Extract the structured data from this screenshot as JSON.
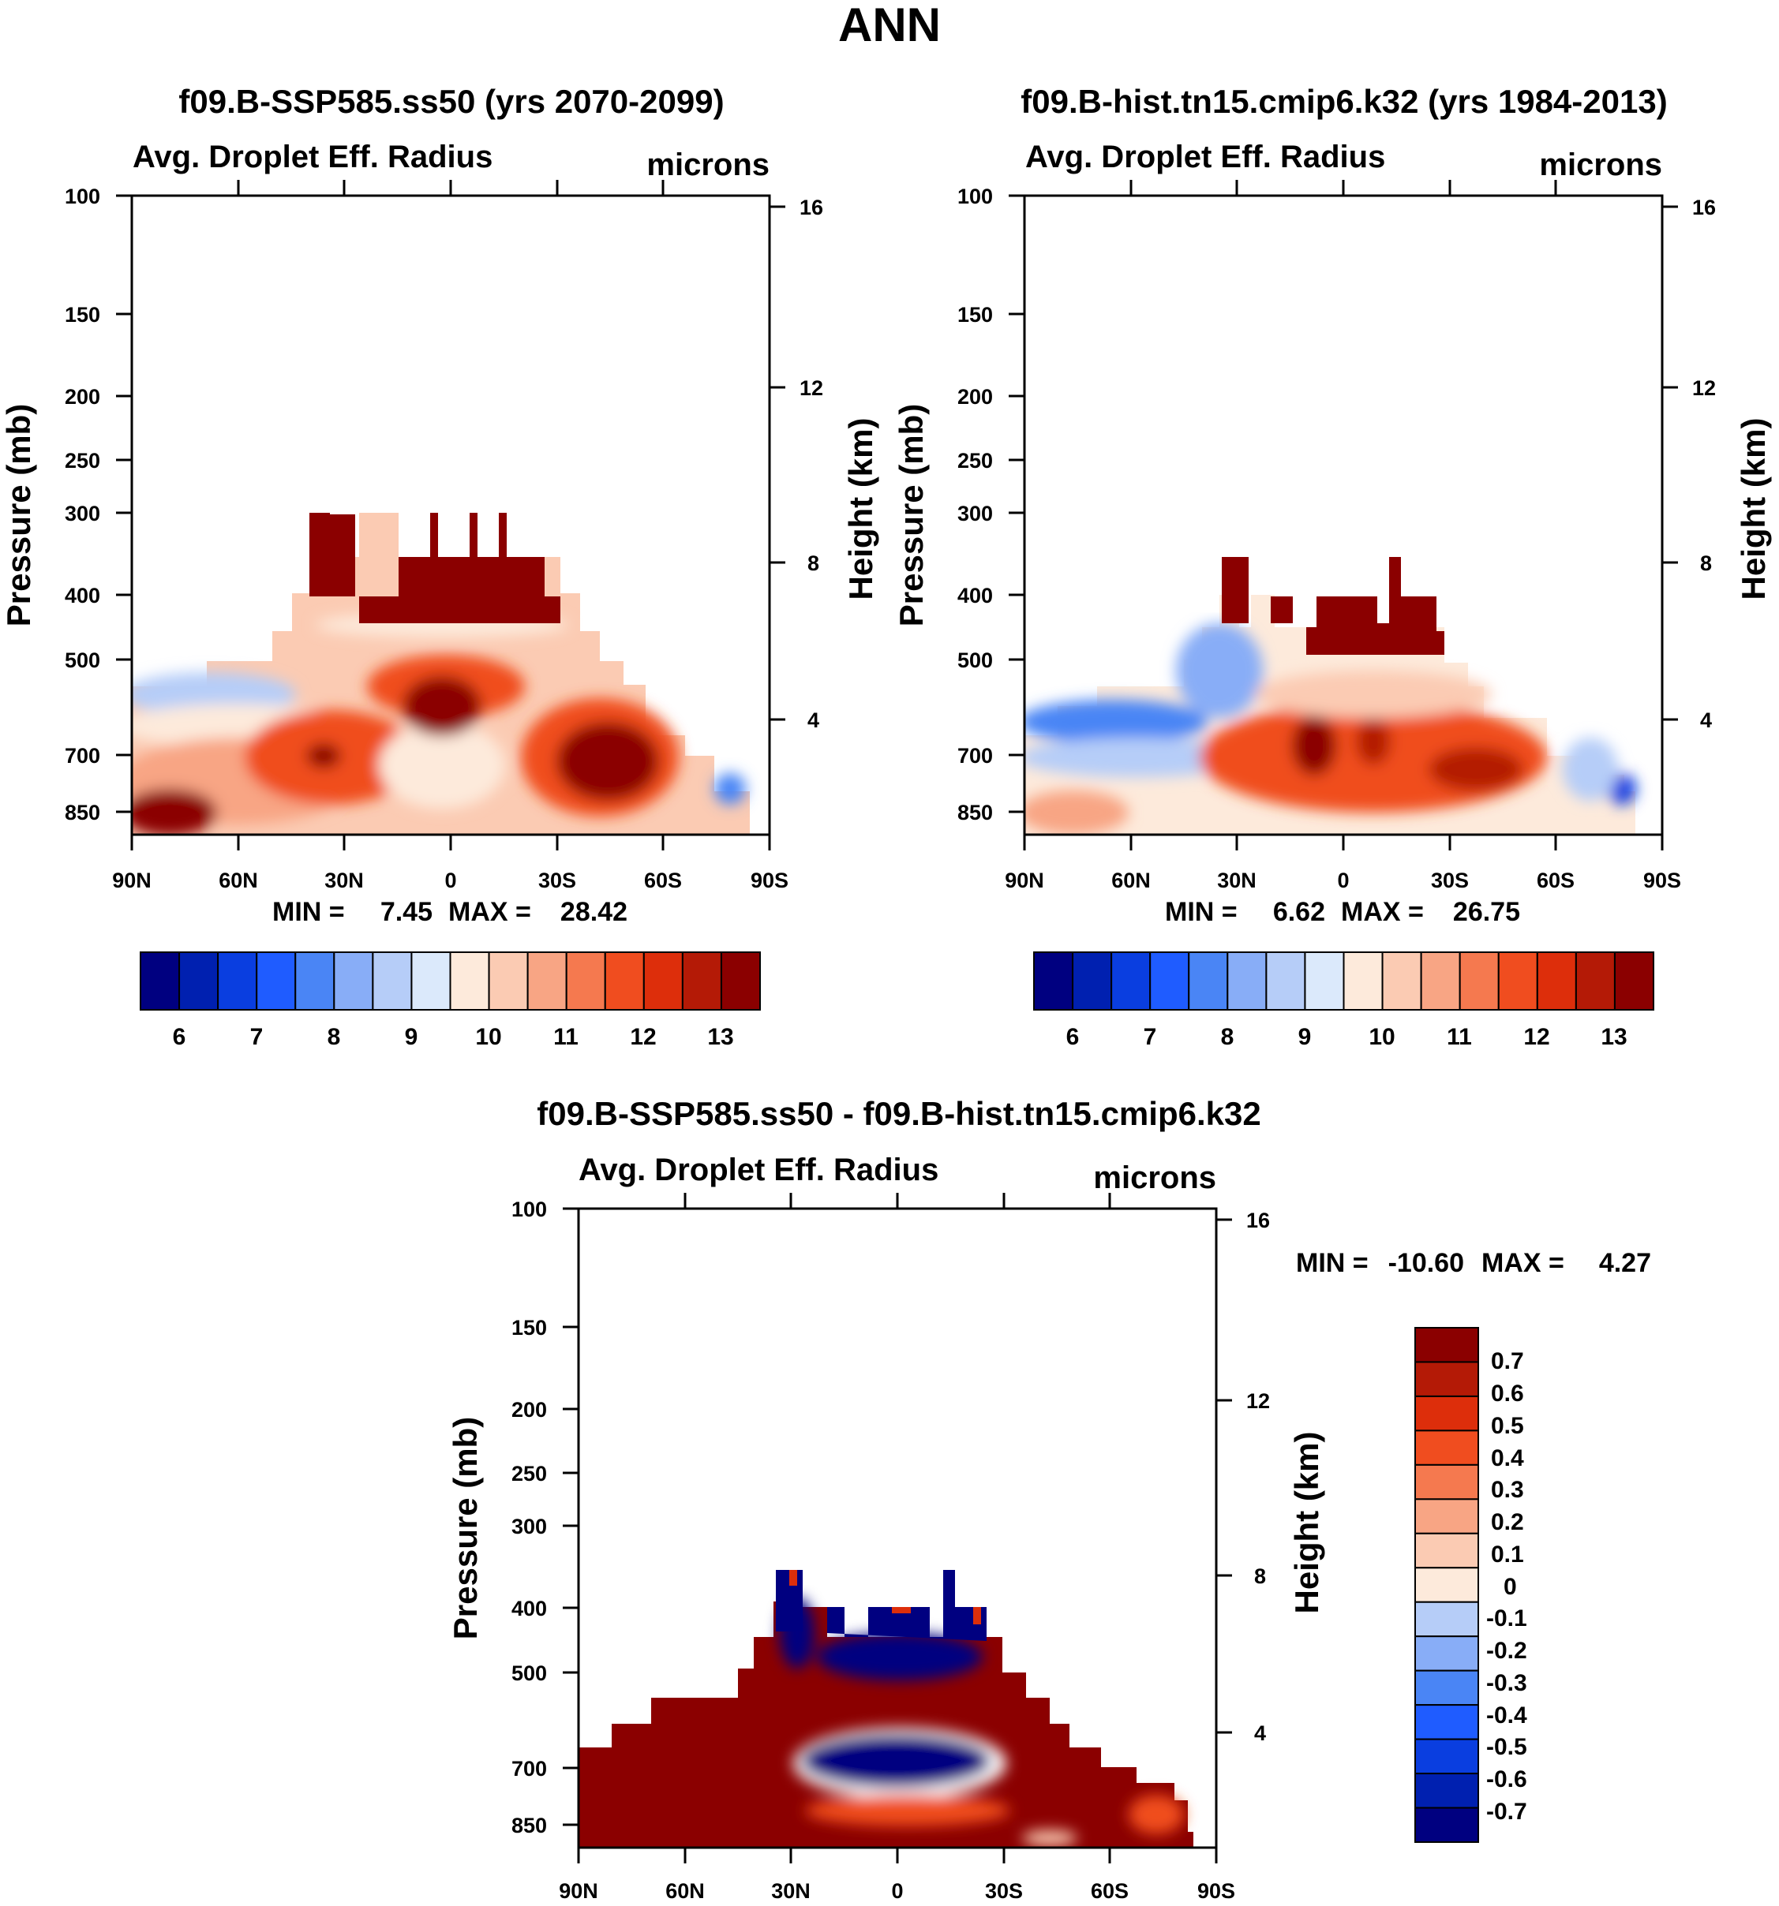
{
  "figure": {
    "title": "ANN",
    "colors": {
      "abs_scale": [
        "#000080",
        "#0020b0",
        "#0a3ee0",
        "#1f5cff",
        "#4a85f5",
        "#88adf7",
        "#b6cdf8",
        "#dbe9fb",
        "#fdeadb",
        "#fbcbb3",
        "#f8a584",
        "#f5794f",
        "#f04d1f",
        "#dd2e0b",
        "#b41a06",
        "#8b0000"
      ],
      "diff_scale": [
        "#000080",
        "#0020b0",
        "#0a3ee0",
        "#1f5cff",
        "#4a85f5",
        "#88adf7",
        "#b6cdf8",
        "#dbe9fb",
        "#fdeadb",
        "#fbcbb3",
        "#f8a584",
        "#f5794f",
        "#f04d1f",
        "#dd2e0b",
        "#b41a06",
        "#8b0000"
      ]
    }
  },
  "chart_data": [
    {
      "type": "heatmap",
      "id": "panel-ssp585",
      "title": "f09.B-SSP585.ss50 (yrs 2070-2099)",
      "variable": "Avg. Droplet Eff. Radius",
      "units": "microns",
      "ylabel_left": "Pressure (mb)",
      "ylabel_right": "Height (km)",
      "x_ticks": [
        "90N",
        "60N",
        "30N",
        "0",
        "30S",
        "60S",
        "90S"
      ],
      "x_tick_values": [
        90,
        60,
        30,
        0,
        -30,
        -60,
        -90
      ],
      "y_ticks": [
        100,
        150,
        200,
        250,
        300,
        400,
        500,
        700,
        850
      ],
      "y_range": [
        100,
        1000
      ],
      "height_ticks_km": [
        4,
        8,
        12,
        16
      ],
      "min_label": "MIN =",
      "min_value": "7.45",
      "max_label": "MAX =",
      "max_value": "28.42",
      "colorbar_labels": [
        "6",
        "7",
        "8",
        "9",
        "10",
        "11",
        "12",
        "13"
      ],
      "colorbar_levels": [
        5.5,
        6,
        6.5,
        7,
        7.5,
        8,
        8.5,
        9,
        9.5,
        10,
        10.5,
        11,
        11.5,
        12,
        12.5,
        13,
        13.5
      ]
    },
    {
      "type": "heatmap",
      "id": "panel-hist",
      "title": "f09.B-hist.tn15.cmip6.k32 (yrs 1984-2013)",
      "variable": "Avg. Droplet Eff. Radius",
      "units": "microns",
      "ylabel_left": "Pressure (mb)",
      "ylabel_right": "Height (km)",
      "x_ticks": [
        "90N",
        "60N",
        "30N",
        "0",
        "30S",
        "60S",
        "90S"
      ],
      "x_tick_values": [
        90,
        60,
        30,
        0,
        -30,
        -60,
        -90
      ],
      "y_ticks": [
        100,
        150,
        200,
        250,
        300,
        400,
        500,
        700,
        850
      ],
      "y_range": [
        100,
        1000
      ],
      "height_ticks_km": [
        4,
        8,
        12,
        16
      ],
      "min_label": "MIN =",
      "min_value": "6.62",
      "max_label": "MAX =",
      "max_value": "26.75",
      "colorbar_labels": [
        "6",
        "7",
        "8",
        "9",
        "10",
        "11",
        "12",
        "13"
      ],
      "colorbar_levels": [
        5.5,
        6,
        6.5,
        7,
        7.5,
        8,
        8.5,
        9,
        9.5,
        10,
        10.5,
        11,
        11.5,
        12,
        12.5,
        13,
        13.5
      ]
    },
    {
      "type": "heatmap",
      "id": "panel-diff",
      "title": "f09.B-SSP585.ss50 - f09.B-hist.tn15.cmip6.k32",
      "variable": "Avg. Droplet Eff. Radius",
      "units": "microns",
      "ylabel_left": "Pressure (mb)",
      "ylabel_right": "Height (km)",
      "x_ticks": [
        "90N",
        "60N",
        "30N",
        "0",
        "30S",
        "60S",
        "90S"
      ],
      "x_tick_values": [
        90,
        60,
        30,
        0,
        -30,
        -60,
        -90
      ],
      "y_ticks": [
        100,
        150,
        200,
        250,
        300,
        400,
        500,
        700,
        850
      ],
      "y_range": [
        100,
        1000
      ],
      "height_ticks_km": [
        4,
        8,
        12,
        16
      ],
      "min_label": "MIN =",
      "min_value": "-10.60",
      "max_label": "MAX =",
      "max_value": "4.27",
      "colorbar_labels": [
        "0.7",
        "0.6",
        "0.5",
        "0.4",
        "0.3",
        "0.2",
        "0.1",
        "0",
        "-0.1",
        "-0.2",
        "-0.3",
        "-0.4",
        "-0.5",
        "-0.6",
        "-0.7"
      ],
      "colorbar_levels": [
        -0.7,
        -0.6,
        -0.5,
        -0.4,
        -0.3,
        -0.2,
        -0.1,
        0,
        0.1,
        0.2,
        0.3,
        0.4,
        0.5,
        0.6,
        0.7
      ]
    }
  ]
}
